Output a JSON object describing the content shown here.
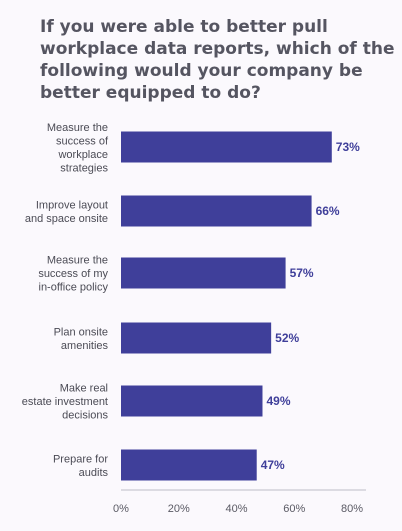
{
  "header": {
    "title_lines": [
      "If you were able to better pull",
      "workplace data reports, which of the",
      "following would your company be",
      "better equipped to do?"
    ]
  },
  "colors": {
    "bar": "#3f3f9a",
    "value_text": "#3f3f9a",
    "axis": "#bdbdc7",
    "title": "#555561",
    "background": "#fbf9fd"
  },
  "chart_data": {
    "type": "bar",
    "orientation": "horizontal",
    "categories": [
      [
        "Measure the",
        "success of",
        "workplace",
        "strategies"
      ],
      [
        "Improve layout",
        "and space onsite"
      ],
      [
        "Measure the",
        "success of my",
        "in-office policy"
      ],
      [
        "Plan onsite",
        "amenities"
      ],
      [
        "Make real",
        "estate investment",
        "decisions"
      ],
      [
        "Prepare for",
        "audits"
      ]
    ],
    "values": [
      73,
      66,
      57,
      52,
      49,
      47
    ],
    "value_labels": [
      "73%",
      "66%",
      "57%",
      "52%",
      "49%",
      "47%"
    ],
    "xlim": [
      0,
      80
    ],
    "xticks": [
      "0%",
      "20%",
      "40%",
      "60%",
      "80%"
    ],
    "grid": false,
    "legend": "none"
  }
}
